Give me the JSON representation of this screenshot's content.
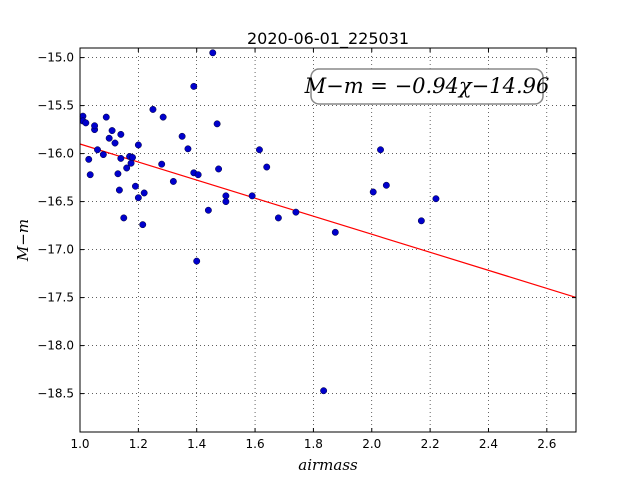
{
  "chart_data": {
    "type": "scatter",
    "title": "2020-06-01_225031",
    "xlabel": "airmass",
    "ylabel": "M−m",
    "xlim": [
      1.0,
      2.7
    ],
    "ylim": [
      -14.9,
      -18.9
    ],
    "y_inverted": true,
    "x_ticks": [
      1.0,
      1.2,
      1.4,
      1.6,
      1.8,
      2.0,
      2.2,
      2.4,
      2.6
    ],
    "x_tick_labels": [
      "1.0",
      "1.2",
      "1.4",
      "1.6",
      "1.8",
      "2.0",
      "2.2",
      "2.4",
      "2.6"
    ],
    "y_ticks": [
      -15.0,
      -15.5,
      -16.0,
      -16.5,
      -17.0,
      -17.5,
      -18.0,
      -18.5
    ],
    "y_tick_labels": [
      "−15.0",
      "−15.5",
      "−16.0",
      "−16.5",
      "−17.0",
      "−17.5",
      "−18.0",
      "−18.5"
    ],
    "grid": true,
    "annotation": "M−m = −0.94χ−14.96",
    "fit_line": {
      "slope": -0.94,
      "intercept": -14.96,
      "color": "#ff0000"
    },
    "point_color": "#0000cc",
    "points": [
      [
        1.01,
        -15.61
      ],
      [
        1.01,
        -15.66
      ],
      [
        1.02,
        -15.68
      ],
      [
        1.03,
        -16.06
      ],
      [
        1.035,
        -16.22
      ],
      [
        1.05,
        -15.75
      ],
      [
        1.05,
        -15.71
      ],
      [
        1.06,
        -15.96
      ],
      [
        1.08,
        -16.01
      ],
      [
        1.09,
        -15.62
      ],
      [
        1.1,
        -15.84
      ],
      [
        1.11,
        -15.76
      ],
      [
        1.12,
        -15.89
      ],
      [
        1.13,
        -16.21
      ],
      [
        1.135,
        -16.38
      ],
      [
        1.14,
        -16.05
      ],
      [
        1.14,
        -15.8
      ],
      [
        1.15,
        -16.67
      ],
      [
        1.16,
        -16.15
      ],
      [
        1.17,
        -16.03
      ],
      [
        1.175,
        -16.1
      ],
      [
        1.18,
        -16.04
      ],
      [
        1.19,
        -16.34
      ],
      [
        1.2,
        -15.91
      ],
      [
        1.2,
        -16.46
      ],
      [
        1.215,
        -16.74
      ],
      [
        1.22,
        -16.41
      ],
      [
        1.25,
        -15.54
      ],
      [
        1.28,
        -16.11
      ],
      [
        1.285,
        -15.62
      ],
      [
        1.32,
        -16.29
      ],
      [
        1.35,
        -15.82
      ],
      [
        1.37,
        -15.95
      ],
      [
        1.39,
        -16.2
      ],
      [
        1.39,
        -15.3
      ],
      [
        1.4,
        -17.12
      ],
      [
        1.405,
        -16.22
      ],
      [
        1.44,
        -16.59
      ],
      [
        1.455,
        -14.95
      ],
      [
        1.47,
        -15.69
      ],
      [
        1.475,
        -16.16
      ],
      [
        1.5,
        -16.44
      ],
      [
        1.5,
        -16.5
      ],
      [
        1.59,
        -16.44
      ],
      [
        1.615,
        -15.96
      ],
      [
        1.64,
        -16.14
      ],
      [
        1.68,
        -16.67
      ],
      [
        1.74,
        -16.61
      ],
      [
        1.835,
        -18.47
      ],
      [
        1.875,
        -16.82
      ],
      [
        2.005,
        -16.4
      ],
      [
        2.03,
        -15.96
      ],
      [
        2.05,
        -16.33
      ],
      [
        2.17,
        -16.7
      ],
      [
        2.22,
        -16.47
      ]
    ]
  }
}
